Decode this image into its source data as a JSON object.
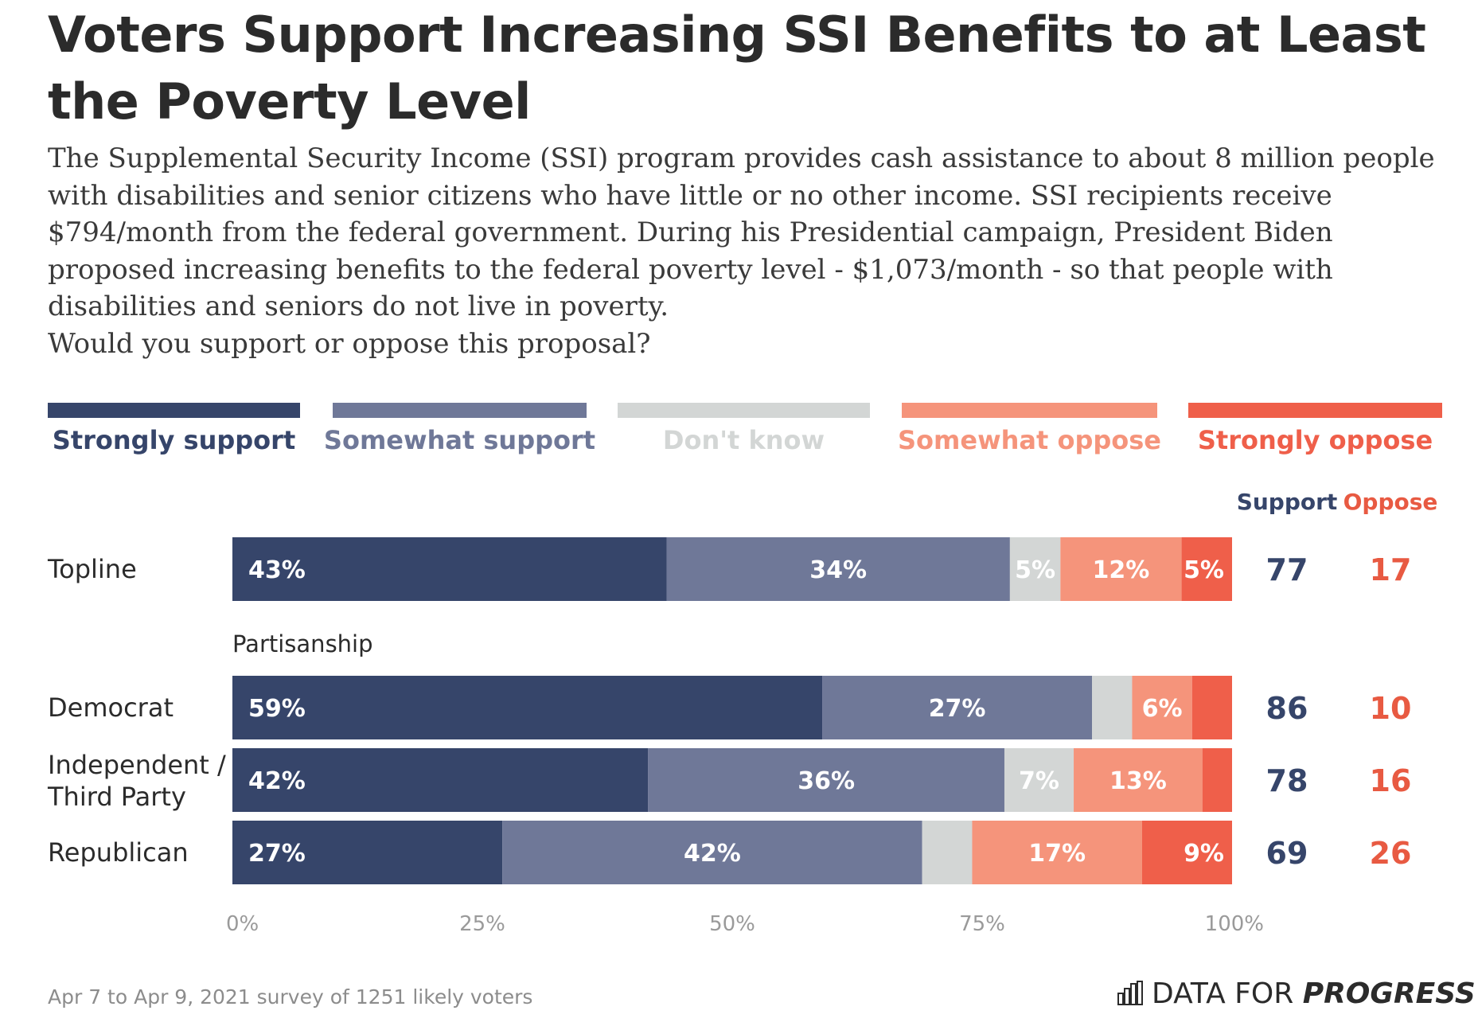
{
  "title": "Voters Support Increasing SSI Benefits to at Least the Poverty Level",
  "subtitle": [
    "The Supplemental Security Income (SSI) program provides cash assistance to about 8 million people",
    "with disabilities and senior citizens who have little or no other income. SSI recipients receive",
    "$794/month from the federal government. During his Presidential campaign, President Biden",
    "proposed increasing benefits to the federal poverty level - $1,073/month - so that people with",
    "disabilities and seniors do not live in poverty.",
    "Would you support or oppose this proposal?"
  ],
  "footer_note": "Apr 7 to Apr 9, 2021 survey of 1251 likely voters",
  "brand": {
    "prefix": "DATA FOR",
    "strong": "PROGRESS"
  },
  "colors": {
    "strongly_support": "#36456a",
    "somewhat_support": "#6f7898",
    "dont_know": "#d3d6d5",
    "somewhat_oppose": "#f5947b",
    "strongly_oppose": "#ef5f4a",
    "support_text": "#36456a",
    "oppose_text": "#e85a42",
    "axis_text": "#9a9a9a"
  },
  "chart_data": {
    "type": "bar",
    "orientation": "horizontal",
    "stacked": true,
    "series": [
      {
        "name": "Strongly support",
        "color_key": "strongly_support"
      },
      {
        "name": "Somewhat support",
        "color_key": "somewhat_support"
      },
      {
        "name": "Don't know",
        "color_key": "dont_know"
      },
      {
        "name": "Somewhat oppose",
        "color_key": "somewhat_oppose"
      },
      {
        "name": "Strongly oppose",
        "color_key": "strongly_oppose"
      }
    ],
    "summary_headers": {
      "support": "Support",
      "oppose": "Oppose"
    },
    "group_label": "Partisanship",
    "rows": [
      {
        "label": [
          "Topline"
        ],
        "values": [
          43,
          34,
          5,
          12,
          5
        ],
        "labels": [
          "43%",
          "34%",
          "5%",
          "12%",
          "5%"
        ],
        "support": "77",
        "oppose": "17"
      },
      {
        "label": [
          "Democrat"
        ],
        "values": [
          59,
          27,
          4,
          6,
          4
        ],
        "labels": [
          "59%",
          "27%",
          "",
          "6%",
          ""
        ],
        "support": "86",
        "oppose": "10"
      },
      {
        "label": [
          "Independent /",
          "Third Party"
        ],
        "values": [
          42,
          36,
          7,
          13,
          3
        ],
        "labels": [
          "42%",
          "36%",
          "7%",
          "13%",
          ""
        ],
        "support": "78",
        "oppose": "16"
      },
      {
        "label": [
          "Republican"
        ],
        "values": [
          27,
          42,
          5,
          17,
          9
        ],
        "labels": [
          "27%",
          "42%",
          "",
          "17%",
          "9%"
        ],
        "support": "69",
        "oppose": "26"
      }
    ],
    "x_ticks": [
      "0%",
      "25%",
      "50%",
      "75%",
      "100%"
    ],
    "xlim": [
      0,
      100
    ]
  }
}
